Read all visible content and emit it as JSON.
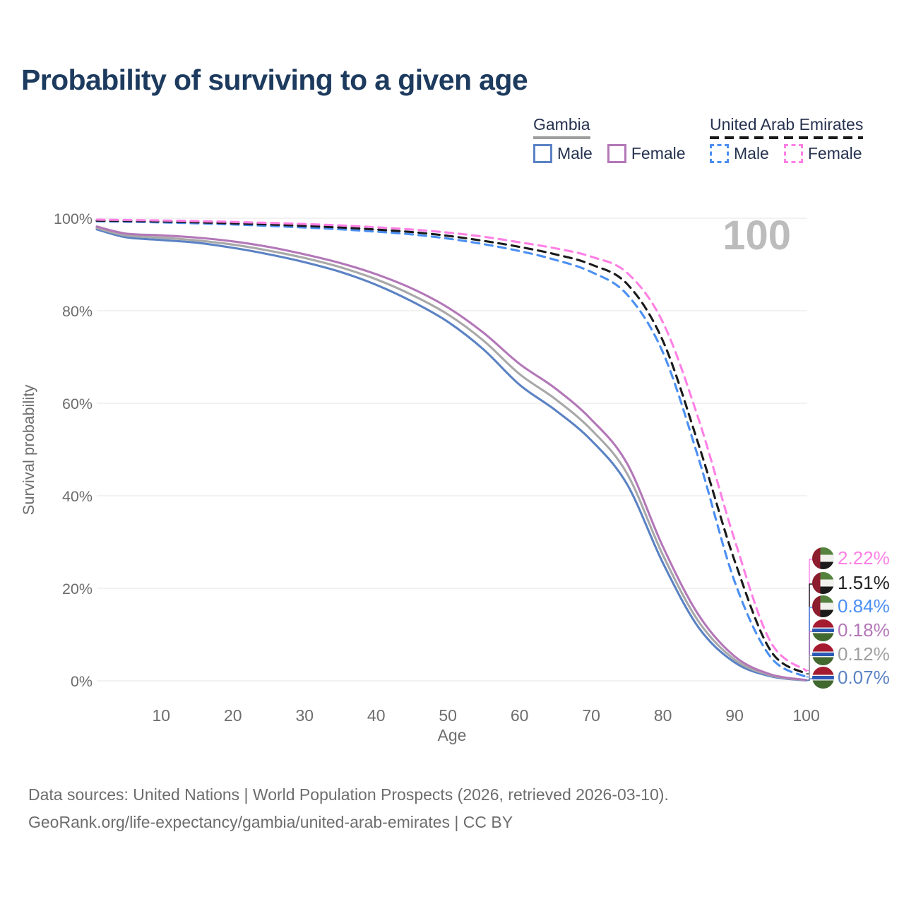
{
  "title": "Probability of surviving to a given age",
  "watermark": {
    "text": "100",
    "color": "#bcbcbc"
  },
  "legend": {
    "groups": [
      {
        "name": "Gambia",
        "line_style": "solid",
        "underline_color": "#9e9e9e",
        "items": [
          {
            "label": "Male",
            "color": "#5b82c4",
            "dashed": false
          },
          {
            "label": "Female",
            "color": "#b377b8",
            "dashed": false
          }
        ]
      },
      {
        "name": "United Arab Emirates",
        "line_style": "dashed",
        "underline_color": "#1a1a1a",
        "items": [
          {
            "label": "Male",
            "color": "#4b8ff2",
            "dashed": true
          },
          {
            "label": "Female",
            "color": "#ff80e5",
            "dashed": true
          }
        ]
      }
    ]
  },
  "axes": {
    "y": {
      "label": "Survival probability",
      "tick_values": [
        0,
        20,
        40,
        60,
        80,
        100
      ],
      "tick_labels": [
        "0%",
        "20%",
        "40%",
        "60%",
        "80%",
        "100%"
      ]
    },
    "x": {
      "label": "Age",
      "tick_values": [
        10,
        20,
        30,
        40,
        50,
        60,
        70,
        80,
        90,
        100
      ],
      "tick_labels": [
        "10",
        "20",
        "30",
        "40",
        "50",
        "60",
        "70",
        "80",
        "90",
        "100"
      ]
    }
  },
  "chart_data": {
    "type": "line",
    "title": "Probability of surviving to a given age",
    "xlabel": "Age",
    "ylabel": "Survival probability",
    "xlim": [
      1,
      100
    ],
    "ylim": [
      0,
      100
    ],
    "grid": "horizontal",
    "legend_position": "top-right",
    "x": [
      1,
      5,
      10,
      15,
      20,
      25,
      30,
      35,
      40,
      45,
      50,
      55,
      60,
      65,
      70,
      75,
      80,
      85,
      90,
      95,
      100
    ],
    "series": [
      {
        "name": "Gambia — Male",
        "country": "Gambia",
        "sex": "Male",
        "color": "#5b82c4",
        "dashed": false,
        "values": [
          97.6,
          95.9,
          95.3,
          94.7,
          93.6,
          92.2,
          90.5,
          88.4,
          85.6,
          82.0,
          77.6,
          71.6,
          64.0,
          58.5,
          52.0,
          42.5,
          25.5,
          11.5,
          4.0,
          1.0,
          0.07
        ]
      },
      {
        "name": "Gambia — Both sexes",
        "country": "Gambia",
        "sex": "Both",
        "color": "#a8a8a8",
        "dashed": false,
        "values": [
          97.9,
          96.3,
          95.8,
          95.2,
          94.3,
          93.0,
          91.4,
          89.4,
          86.8,
          83.4,
          79.2,
          73.5,
          66.3,
          60.9,
          54.3,
          44.8,
          27.2,
          12.8,
          4.6,
          1.2,
          0.12
        ]
      },
      {
        "name": "Gambia — Female",
        "country": "Gambia",
        "sex": "Female",
        "color": "#b377b8",
        "dashed": false,
        "values": [
          98.2,
          96.7,
          96.3,
          95.8,
          95.0,
          93.8,
          92.2,
          90.3,
          87.9,
          84.8,
          80.7,
          75.2,
          68.5,
          63.2,
          56.5,
          47.0,
          29.0,
          14.2,
          5.3,
          1.4,
          0.18
        ]
      },
      {
        "name": "United Arab Emirates — Male",
        "country": "United Arab Emirates",
        "sex": "Male",
        "color": "#4b8ff2",
        "dashed": true,
        "values": [
          99.35,
          99.25,
          99.1,
          98.9,
          98.65,
          98.35,
          98.0,
          97.6,
          97.1,
          96.5,
          95.6,
          94.4,
          92.9,
          91.0,
          88.4,
          83.5,
          71.0,
          48.0,
          21.5,
          5.2,
          0.84
        ]
      },
      {
        "name": "United Arab Emirates — Both sexes",
        "country": "United Arab Emirates",
        "sex": "Both",
        "color": "#1a1a1a",
        "dashed": true,
        "values": [
          99.5,
          99.42,
          99.3,
          99.12,
          98.9,
          98.65,
          98.35,
          98.0,
          97.55,
          97.0,
          96.2,
          95.1,
          93.8,
          92.2,
          90.0,
          85.8,
          73.5,
          51.0,
          26.0,
          6.6,
          1.51
        ]
      },
      {
        "name": "United Arab Emirates — Female",
        "country": "United Arab Emirates",
        "sex": "Female",
        "color": "#ff80e5",
        "dashed": true,
        "values": [
          99.7,
          99.62,
          99.52,
          99.38,
          99.2,
          99.0,
          98.75,
          98.45,
          98.05,
          97.55,
          96.9,
          96.0,
          94.8,
          93.5,
          91.7,
          88.2,
          77.5,
          56.5,
          30.5,
          8.5,
          2.22
        ]
      }
    ],
    "end_labels": [
      {
        "value": "2.22%",
        "color": "#ff80e5",
        "flag": "uae",
        "icon": "uae-flag-icon",
        "series": "United Arab Emirates — Female"
      },
      {
        "value": "1.51%",
        "color": "#222222",
        "flag": "uae",
        "icon": "uae-flag-icon",
        "series": "United Arab Emirates — Both sexes"
      },
      {
        "value": "0.84%",
        "color": "#4b8ff2",
        "flag": "uae",
        "icon": "uae-flag-icon",
        "series": "United Arab Emirates — Male"
      },
      {
        "value": "0.18%",
        "color": "#b377b8",
        "flag": "gambia",
        "icon": "gambia-flag-icon",
        "series": "Gambia — Female"
      },
      {
        "value": "0.12%",
        "color": "#a0a0a0",
        "flag": "gambia",
        "icon": "gambia-flag-icon",
        "series": "Gambia — Both sexes"
      },
      {
        "value": "0.07%",
        "color": "#5b82c4",
        "flag": "gambia",
        "icon": "gambia-flag-icon",
        "series": "Gambia — Male"
      }
    ]
  },
  "footer": {
    "line1": "Data sources: United Nations | World Population Prospects (2026, retrieved 2026-03-10).",
    "line2": "GeoRank.org/life-expectancy/gambia/united-arab-emirates | CC BY"
  }
}
